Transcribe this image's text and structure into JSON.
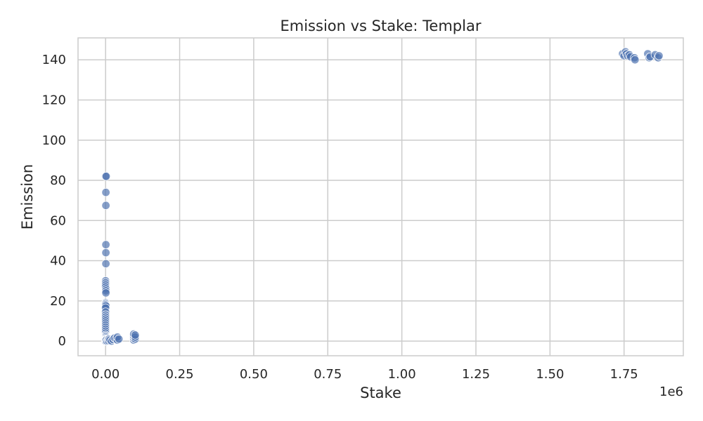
{
  "chart_data": {
    "type": "scatter",
    "title": "Emission vs Stake: Templar",
    "xlabel": "Stake",
    "ylabel": "Emission",
    "x_offset_label": "1e6",
    "xlim": [
      -0.093,
      1.95
    ],
    "ylim": [
      -7.3,
      150.9
    ],
    "xticks": [
      0.0,
      0.25,
      0.5,
      0.75,
      1.0,
      1.25,
      1.5,
      1.75
    ],
    "xtick_labels": [
      "0.00",
      "0.25",
      "0.50",
      "0.75",
      "1.00",
      "1.25",
      "1.50",
      "1.75"
    ],
    "yticks": [
      0,
      20,
      40,
      60,
      80,
      100,
      120,
      140
    ],
    "ytick_labels": [
      "0",
      "20",
      "40",
      "60",
      "80",
      "100",
      "120",
      "140"
    ],
    "grid": true,
    "legend": "none",
    "colors": {
      "point": "#4c72b0",
      "grid": "#cccccc",
      "text": "#262626",
      "background": "#ffffff"
    },
    "series": [
      {
        "points": [
          [
            0.0,
            82.0
          ],
          [
            0.002,
            82.0
          ],
          [
            0.001,
            74.0
          ],
          [
            0.001,
            67.5
          ],
          [
            0.001,
            48.0
          ],
          [
            0.001,
            44.0
          ],
          [
            0.001,
            38.5
          ],
          [
            0.0,
            30.0
          ],
          [
            0.0,
            29.0
          ],
          [
            0.0,
            28.0
          ],
          [
            0.0,
            27.0
          ],
          [
            0.001,
            26.0
          ],
          [
            0.001,
            25.0
          ],
          [
            0.001,
            24.0
          ],
          [
            0.0,
            19.0
          ],
          [
            0.0,
            18.5
          ],
          [
            0.0,
            18.0
          ],
          [
            0.001,
            17.5
          ],
          [
            0.0,
            16.5
          ],
          [
            0.0,
            14.5
          ],
          [
            0.0,
            13.0
          ],
          [
            0.0,
            12.0
          ],
          [
            0.0,
            11.0
          ],
          [
            0.0,
            10.0
          ],
          [
            0.0,
            9.0
          ],
          [
            0.0,
            8.0
          ],
          [
            0.0,
            7.0
          ],
          [
            0.0,
            6.0
          ],
          [
            0.0,
            5.0
          ],
          [
            0.0,
            4.0
          ],
          [
            0.0,
            3.0
          ],
          [
            0.0,
            2.5
          ],
          [
            0.0,
            2.0
          ],
          [
            0.0,
            1.5
          ],
          [
            0.0,
            1.0
          ],
          [
            0.0,
            0.8
          ],
          [
            0.0,
            0.5
          ],
          [
            0.0,
            0.3
          ],
          [
            0.0,
            0.0
          ],
          [
            0.001,
            0.0
          ],
          [
            0.002,
            0.5
          ],
          [
            0.005,
            0.0
          ],
          [
            0.008,
            0.5
          ],
          [
            0.01,
            0.2
          ],
          [
            0.012,
            1.0
          ],
          [
            0.015,
            0.5
          ],
          [
            0.02,
            0.0
          ],
          [
            0.025,
            0.8
          ],
          [
            0.03,
            1.5
          ],
          [
            0.035,
            1.0
          ],
          [
            0.04,
            0.5
          ],
          [
            0.04,
            2.0
          ],
          [
            0.045,
            1.0
          ],
          [
            0.095,
            0.5
          ],
          [
            0.095,
            1.5
          ],
          [
            0.095,
            2.5
          ],
          [
            0.095,
            3.5
          ],
          [
            0.1,
            1.0
          ],
          [
            0.1,
            2.0
          ],
          [
            0.1,
            3.0
          ],
          [
            1.745,
            143.0
          ],
          [
            1.75,
            142.0
          ],
          [
            1.755,
            144.0
          ],
          [
            1.758,
            143.0
          ],
          [
            1.762,
            142.0
          ],
          [
            1.768,
            142.5
          ],
          [
            1.772,
            141.5
          ],
          [
            1.785,
            141.0
          ],
          [
            1.787,
            140.0
          ],
          [
            1.83,
            143.0
          ],
          [
            1.835,
            141.0
          ],
          [
            1.838,
            141.5
          ],
          [
            1.855,
            142.5
          ],
          [
            1.865,
            141.0
          ],
          [
            1.868,
            142.0
          ]
        ]
      }
    ]
  }
}
